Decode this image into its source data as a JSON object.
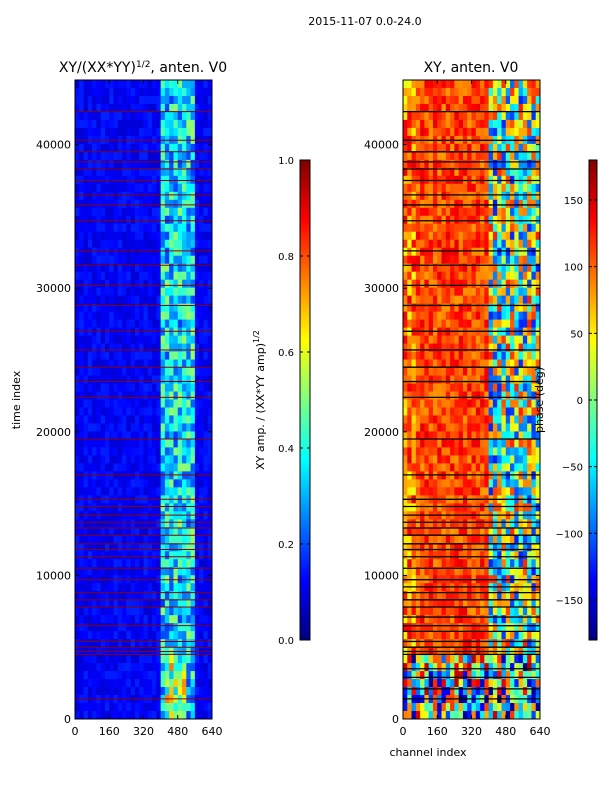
{
  "suptitle": "2015-11-07 0.0-24.0",
  "colors": {
    "jet": [
      "#00007f",
      "#0000ff",
      "#007fff",
      "#00ffff",
      "#7fff7f",
      "#ffff00",
      "#ff7f00",
      "#ff0000",
      "#7f0000"
    ],
    "flag_red": "#8b0000",
    "flag_black": "#000000"
  },
  "chart_data": [
    {
      "type": "heatmap",
      "title": "XY/(XX*YY)",
      "title_sup": "1/2",
      "title_suffix": ", anten. V0",
      "xlabel": "",
      "ylabel": "time index",
      "xlim": [
        0,
        640
      ],
      "ylim": [
        0,
        44500
      ],
      "xticks": [
        0,
        160,
        320,
        480,
        640
      ],
      "yticks": [
        0,
        10000,
        20000,
        30000,
        40000
      ],
      "xtick_labels": [
        "0",
        "160",
        "320",
        "480",
        "640"
      ],
      "ytick_labels": [
        "0",
        "10000",
        "20000",
        "30000",
        "40000"
      ],
      "colorbar": {
        "label": "XY amp. / (XX*YY amp)",
        "label_sup": "1/2",
        "range": [
          0.0,
          1.0
        ],
        "ticks": [
          0.0,
          0.2,
          0.4,
          0.6,
          0.8,
          1.0
        ],
        "tick_labels": [
          "0.0",
          "0.2",
          "0.4",
          "0.6",
          "0.8",
          "1.0"
        ]
      },
      "flagged_rows": [
        1400,
        4500,
        4700,
        5000,
        5400,
        6500,
        7800,
        8300,
        8800,
        9700,
        10500,
        11300,
        11800,
        12200,
        12800,
        13300,
        13700,
        14200,
        14800,
        15300,
        17000,
        19500,
        22400,
        23500,
        24500,
        25700,
        27000,
        28800,
        30200,
        31600,
        32600,
        34700,
        35800,
        36500,
        37500,
        38300,
        38800,
        39500,
        40300,
        42300
      ]
    },
    {
      "type": "heatmap",
      "title": "XY, anten. V0",
      "xlabel": "channel index",
      "ylabel": "",
      "xlim": [
        0,
        640
      ],
      "ylim": [
        0,
        44500
      ],
      "xticks": [
        0,
        160,
        320,
        480,
        640
      ],
      "yticks": [
        0,
        10000,
        20000,
        30000,
        40000
      ],
      "xtick_labels": [
        "0",
        "160",
        "320",
        "480",
        "640"
      ],
      "ytick_labels": [
        "0",
        "10000",
        "20000",
        "30000",
        "40000"
      ],
      "colorbar": {
        "label": "phase (deg)",
        "range": [
          -180,
          180
        ],
        "ticks": [
          -150,
          -100,
          -50,
          0,
          50,
          100,
          150
        ],
        "tick_labels": [
          "−150",
          "−100",
          "−50",
          "0",
          "50",
          "100",
          "150"
        ]
      },
      "flagged_rows": [
        1400,
        2100,
        2900,
        3500,
        4500,
        4700,
        5000,
        5400,
        6100,
        6500,
        7100,
        7800,
        8300,
        8800,
        9200,
        9700,
        10500,
        11300,
        11800,
        12200,
        12800,
        13300,
        13700,
        14200,
        14800,
        15300,
        17000,
        19500,
        22400,
        23500,
        24500,
        25700,
        27000,
        28800,
        30200,
        31600,
        32600,
        34700,
        35800,
        36500,
        37500,
        38300,
        38800,
        39500,
        40300,
        42300
      ]
    }
  ]
}
